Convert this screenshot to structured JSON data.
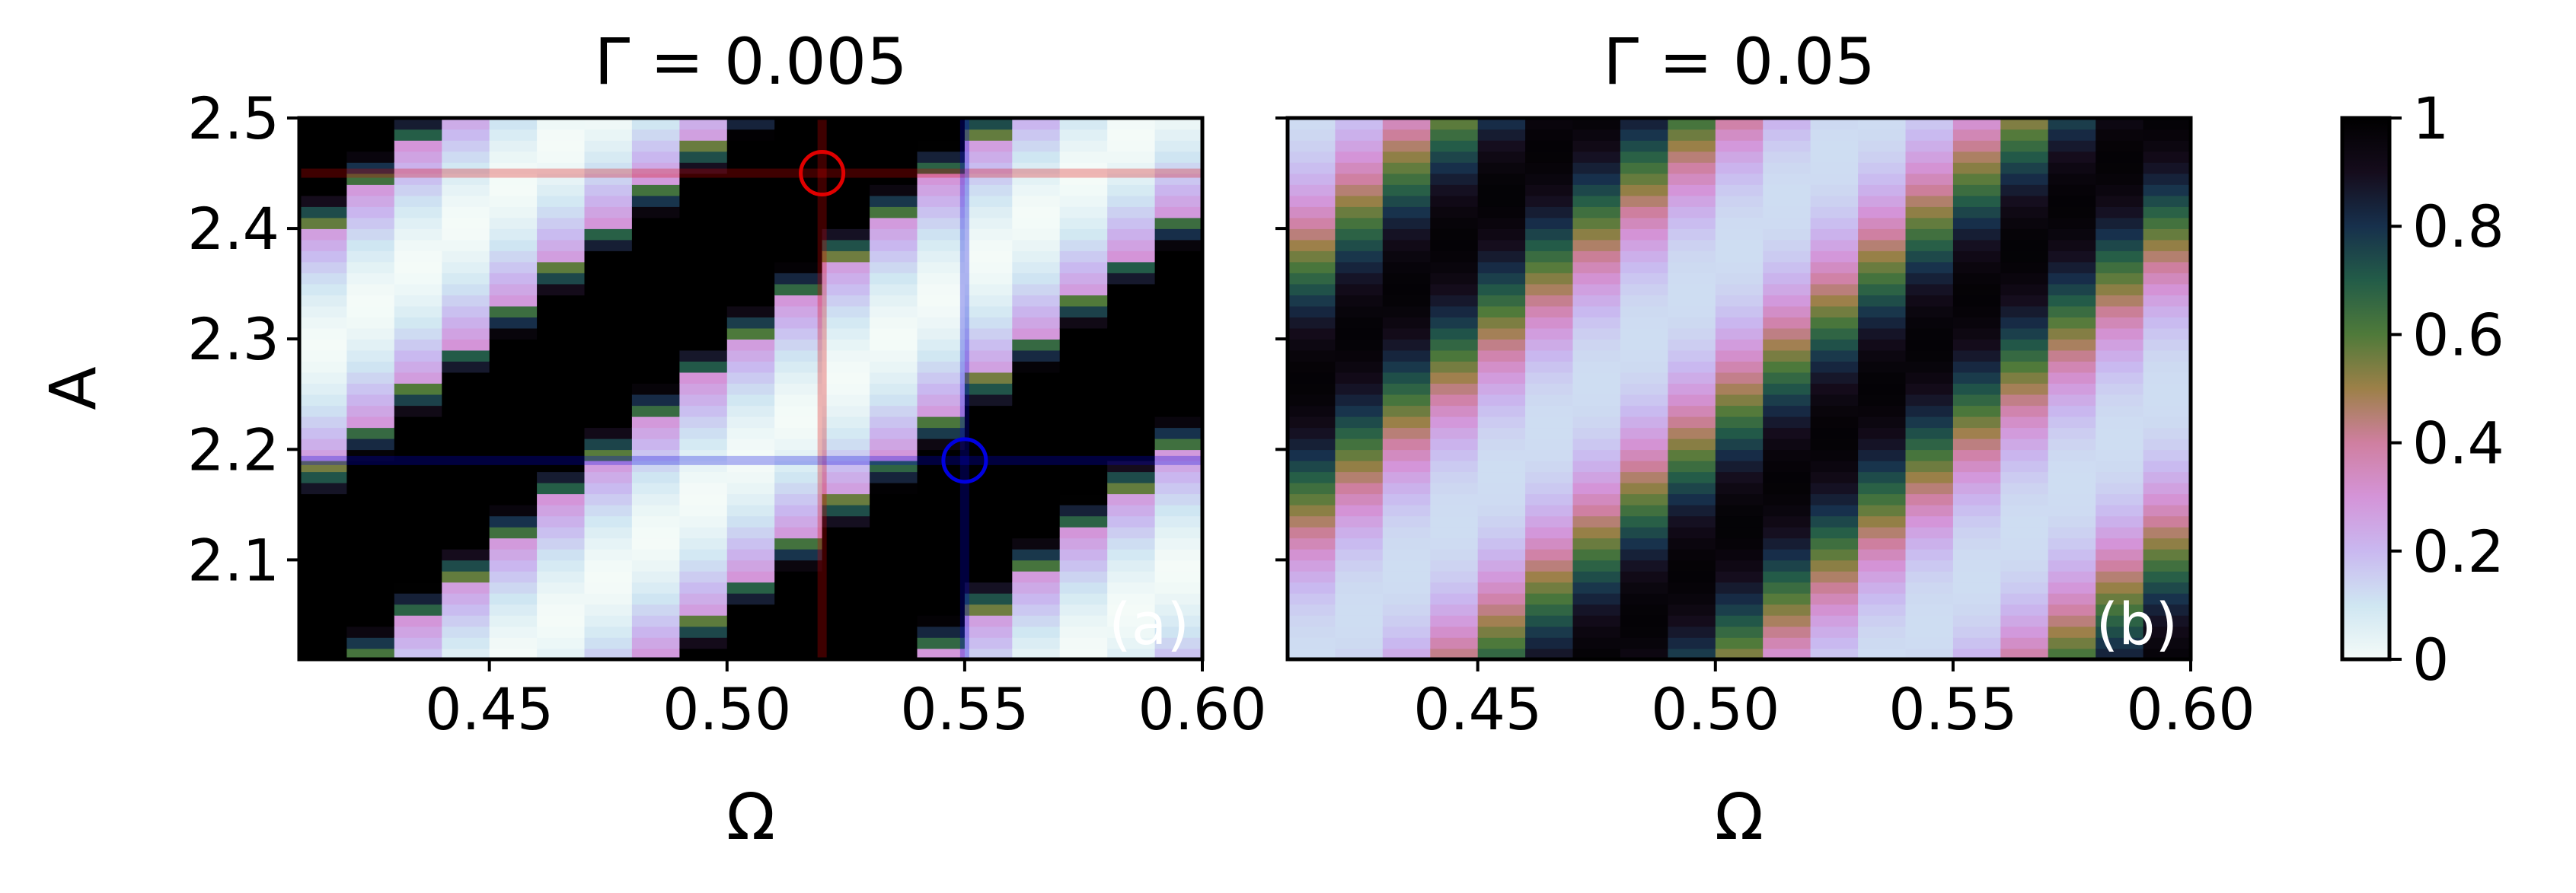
{
  "chart_data": [
    {
      "type": "heatmap",
      "panel_label": "(a)",
      "title": "Γ = 0.005",
      "xlabel": "Ω",
      "ylabel": "A",
      "xlim": [
        0.41,
        0.6
      ],
      "ylim": [
        2.01,
        2.5
      ],
      "xticks": [
        "0.45",
        "0.50",
        "0.55",
        "0.60"
      ],
      "yticks": [
        "2.1",
        "2.2",
        "2.3",
        "2.4",
        "2.5"
      ],
      "grid": false,
      "colormap": "cubehelix_r",
      "overlays": {
        "red_marker": {
          "omega": 0.52,
          "A": 2.45,
          "color": "#e00000"
        },
        "blue_marker": {
          "omega": 0.55,
          "A": 2.19,
          "color": "#0000e0"
        }
      }
    },
    {
      "type": "heatmap",
      "panel_label": "(b)",
      "title": "Γ = 0.05",
      "xlabel": "Ω",
      "ylabel": "",
      "xlim": [
        0.41,
        0.6
      ],
      "ylim": [
        2.01,
        2.5
      ],
      "xticks": [
        "0.45",
        "0.50",
        "0.55",
        "0.60"
      ],
      "yticks": [],
      "grid": false,
      "colormap": "cubehelix_r"
    }
  ],
  "colorbar": {
    "range": [
      0,
      1
    ],
    "ticks": [
      "0",
      "0.2",
      "0.4",
      "0.6",
      "0.8",
      "1"
    ]
  },
  "colors": {
    "cmap_stops": [
      "#f4fbf8",
      "#cfe6f2",
      "#c9b8f0",
      "#d494d8",
      "#cf7fa0",
      "#9c8048",
      "#4f7a3a",
      "#235c48",
      "#17304c",
      "#150c1c",
      "#000000"
    ]
  }
}
